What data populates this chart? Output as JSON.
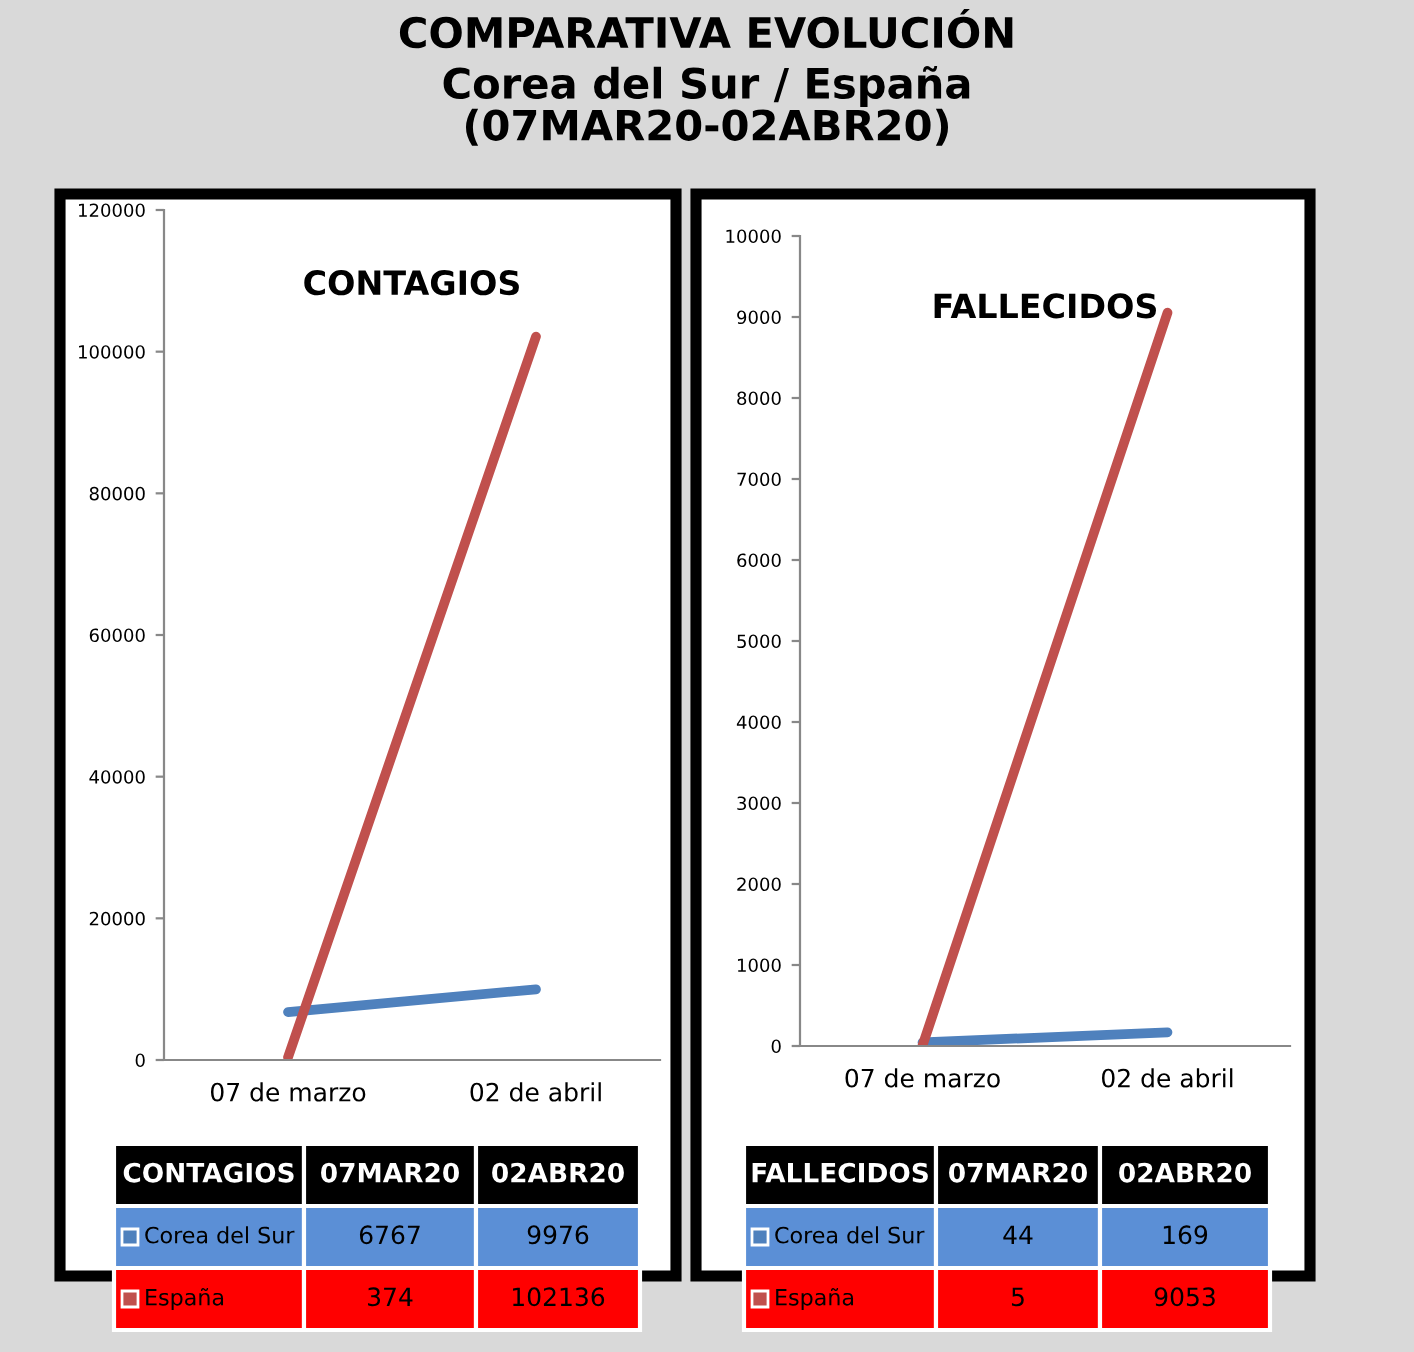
{
  "chart_data": [
    {
      "type": "other",
      "title": "COMPARATIVA EVOLUCIÓN",
      "subtitle": "Corea del Sur / España\n(07MAR20-02ABR20)"
    },
    {
      "type": "line",
      "title": "CONTAGIOS",
      "categories": [
        "07 de marzo",
        "02 de abril"
      ],
      "series": [
        {
          "name": "Corea del Sur",
          "color": "#4f81bd",
          "values": [
            6767,
            9976
          ]
        },
        {
          "name": "España",
          "color": "#c0504d",
          "values": [
            374,
            102136
          ]
        }
      ],
      "ylim": [
        0,
        120000
      ],
      "yticks": [
        0,
        20000,
        40000,
        60000,
        80000,
        100000,
        120000
      ],
      "legend": "bottom",
      "data_labels": true,
      "annotations": [
        "07MAR20",
        "02ABR20"
      ]
    },
    {
      "type": "line",
      "title": "FALLECIDOS",
      "categories": [
        "07 de marzo",
        "02 de abril"
      ],
      "series": [
        {
          "name": "Corea del Sur",
          "color": "#4f81bd",
          "values": [
            44,
            169
          ]
        },
        {
          "name": "España",
          "color": "#c0504d",
          "values": [
            5,
            9053
          ]
        }
      ],
      "ylim": [
        0,
        10000
      ],
      "yticks": [
        0,
        1000,
        2000,
        3000,
        4000,
        5000,
        6000,
        7000,
        8000,
        9000,
        10000
      ],
      "legend": "bottom",
      "data_labels": true,
      "annotations": [
        "07MAR20",
        "02ABR20"
      ]
    }
  ]
}
